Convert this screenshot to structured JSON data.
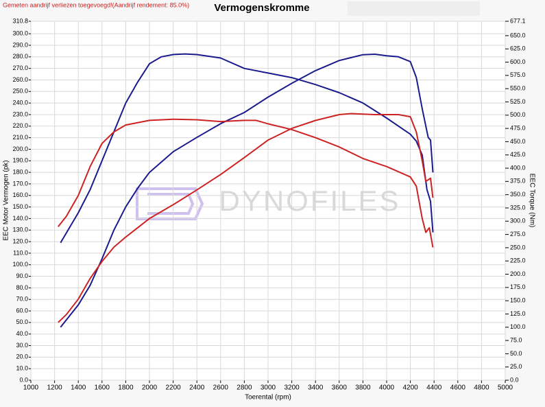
{
  "chart_data": {
    "type": "line",
    "title": "Vermogenskromme",
    "subtitle": "Gemeten aandrijf verliezen toegevoegd!(Aandrijf rendement: 85.0%)",
    "watermark": "DYNOFILES",
    "x_label": "Toerental (rpm)",
    "y_label": "EEC Motor Vermogen (pk)",
    "y2_label": "EEC Torque (Nm)",
    "grid": true,
    "xlim": [
      1000,
      5000
    ],
    "xticks": [
      1000,
      1200,
      1400,
      1600,
      1800,
      2000,
      2200,
      2400,
      2600,
      2800,
      3000,
      3200,
      3400,
      3600,
      3800,
      4000,
      4200,
      4400,
      4600,
      4800,
      5000
    ],
    "ylim": [
      0,
      310.8
    ],
    "yticks": [
      {
        "value": 0,
        "label": "0.0"
      },
      {
        "value": 10,
        "label": "10.0"
      },
      {
        "value": 20,
        "label": "20.0"
      },
      {
        "value": 30,
        "label": "30.0"
      },
      {
        "value": 40,
        "label": "40.0"
      },
      {
        "value": 50,
        "label": "50.0"
      },
      {
        "value": 60,
        "label": "60.0"
      },
      {
        "value": 70,
        "label": "70.0"
      },
      {
        "value": 80,
        "label": "80.0"
      },
      {
        "value": 90,
        "label": "90.0"
      },
      {
        "value": 100,
        "label": "100.0"
      },
      {
        "value": 110,
        "label": "110.0"
      },
      {
        "value": 120,
        "label": "120.0"
      },
      {
        "value": 130,
        "label": "130.0"
      },
      {
        "value": 140,
        "label": "140.0"
      },
      {
        "value": 150,
        "label": "150.0"
      },
      {
        "value": 160,
        "label": "160.0"
      },
      {
        "value": 170,
        "label": "170.0"
      },
      {
        "value": 180,
        "label": "180.0"
      },
      {
        "value": 190,
        "label": "190.0"
      },
      {
        "value": 200,
        "label": "200.0"
      },
      {
        "value": 210,
        "label": "210.0"
      },
      {
        "value": 220,
        "label": "220.0"
      },
      {
        "value": 230,
        "label": "230.0"
      },
      {
        "value": 240,
        "label": "240.0"
      },
      {
        "value": 250,
        "label": "250.0"
      },
      {
        "value": 260,
        "label": "260.0"
      },
      {
        "value": 270,
        "label": "270.0"
      },
      {
        "value": 280,
        "label": "280.0"
      },
      {
        "value": 290,
        "label": "290.0"
      },
      {
        "value": 300,
        "label": "300.0"
      },
      310.8
    ],
    "y2lim": [
      0,
      677.1
    ],
    "y2ticks": [
      {
        "value": 0,
        "label": "0.0"
      },
      {
        "value": 25,
        "label": "25.0"
      },
      {
        "value": 50,
        "label": "50.0"
      },
      {
        "value": 75,
        "label": "75.0"
      },
      {
        "value": 100,
        "label": "100.0"
      },
      {
        "value": 125,
        "label": "125.0"
      },
      {
        "value": 150,
        "label": "150.0"
      },
      {
        "value": 175,
        "label": "175.0"
      },
      {
        "value": 200,
        "label": "200.0"
      },
      {
        "value": 225,
        "label": "225.0"
      },
      {
        "value": 250,
        "label": "250.0"
      },
      {
        "value": 275,
        "label": "275.0"
      },
      {
        "value": 300,
        "label": "300.0"
      },
      {
        "value": 325,
        "label": "325.0"
      },
      {
        "value": 350,
        "label": "350.0"
      },
      {
        "value": 375,
        "label": "375.0"
      },
      {
        "value": 400,
        "label": "400.0"
      },
      {
        "value": 425,
        "label": "425.0"
      },
      {
        "value": 450,
        "label": "450.0"
      },
      {
        "value": 475,
        "label": "475.0"
      },
      {
        "value": 500,
        "label": "500.0"
      },
      {
        "value": 525,
        "label": "525.0"
      },
      {
        "value": 550,
        "label": "550.0"
      },
      {
        "value": 575,
        "label": "575.0"
      },
      {
        "value": 600,
        "label": "600.0"
      },
      {
        "value": 625,
        "label": "625.0"
      },
      {
        "value": 650,
        "label": "650.0"
      },
      677.1
    ],
    "series": [
      {
        "color": "#1a1a8c",
        "x": [
          1250,
          1400,
          1500,
          1600,
          1700,
          1800,
          1900,
          2000,
          2100,
          2200,
          2300,
          2400,
          2600,
          2800,
          3000,
          3200,
          3400,
          3600,
          3800,
          4000,
          4200,
          4250,
          4300,
          4340,
          4370,
          4390
        ],
        "values": [
          119,
          145,
          165,
          190,
          215,
          240,
          258,
          274,
          280,
          282,
          282.5,
          282,
          279,
          270,
          266,
          262,
          256,
          249,
          240,
          227,
          213,
          207,
          195,
          165,
          155,
          128
        ]
      },
      {
        "color": "#1a1a8c",
        "axis": "y2",
        "x": [
          1250,
          1400,
          1500,
          1600,
          1700,
          1800,
          1900,
          2000,
          2200,
          2400,
          2600,
          2800,
          3000,
          3200,
          3400,
          3600,
          3800,
          3900,
          4000,
          4100,
          4200,
          4250,
          4300,
          4350,
          4370,
          4390
        ],
        "values": [
          100,
          142,
          179,
          229,
          283,
          327,
          362,
          392,
          431,
          458,
          484,
          505,
          534,
          560,
          584,
          603,
          614,
          615,
          612,
          610,
          601,
          571,
          512,
          458,
          453,
          392
        ]
      },
      {
        "color": "#cc2222",
        "x": [
          1230,
          1300,
          1400,
          1500,
          1600,
          1700,
          1800,
          2000,
          2200,
          2400,
          2600,
          2800,
          2900,
          3000,
          3200,
          3400,
          3600,
          3800,
          4000,
          4200,
          4250,
          4300,
          4330,
          4360,
          4390
        ],
        "values": [
          133,
          142,
          160,
          185,
          205,
          215,
          221,
          225,
          226,
          225.5,
          224,
          225,
          225,
          222,
          217,
          210,
          202,
          192,
          185,
          176,
          168,
          140,
          128,
          132,
          115
        ]
      },
      {
        "color": "#cc2222",
        "axis": "y2",
        "x": [
          1230,
          1300,
          1400,
          1500,
          1600,
          1700,
          1800,
          2000,
          2200,
          2400,
          2600,
          2800,
          3000,
          3200,
          3400,
          3600,
          3700,
          3900,
          4100,
          4200,
          4250,
          4300,
          4330,
          4370,
          4390
        ],
        "values": [
          109,
          124,
          153,
          192,
          224,
          251,
          270,
          305,
          331,
          359,
          388,
          420,
          453,
          475,
          490,
          501,
          503,
          501,
          501,
          497,
          468,
          414,
          375,
          381,
          344
        ]
      }
    ]
  }
}
